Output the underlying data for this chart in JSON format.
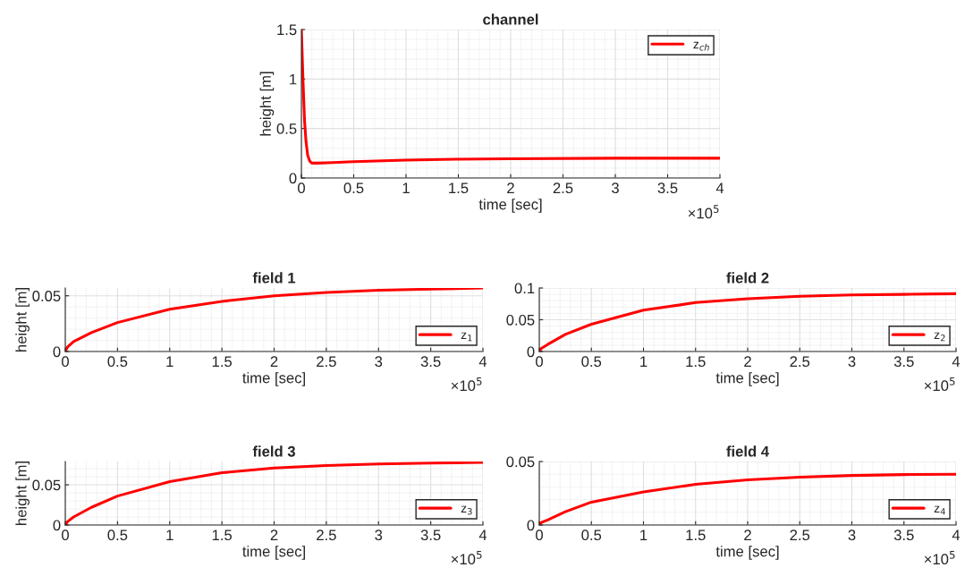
{
  "chart_data": [
    {
      "type": "line",
      "title": "channel",
      "xlabel": "time [sec]",
      "ylabel": "height [m]",
      "annotations": [
        "×10$^{5}$"
      ],
      "x": [
        0,
        0.015,
        0.03,
        0.044,
        0.06,
        0.08,
        0.1,
        0.15,
        0.3,
        0.5,
        1,
        1.5,
        2,
        3,
        4
      ],
      "series": [
        {
          "name": "z$_{ch}$",
          "color": "#ff0000",
          "values": [
            1.5,
            1.0,
            0.58,
            0.37,
            0.23,
            0.17,
            0.15,
            0.15,
            0.155,
            0.165,
            0.18,
            0.19,
            0.195,
            0.2,
            0.2
          ]
        }
      ],
      "xlim": [
        0,
        4
      ],
      "ylim": [
        0,
        1.5
      ],
      "xticks": [
        0,
        0.5,
        1,
        1.5,
        2,
        2.5,
        3,
        3.5,
        4
      ],
      "yticks": [
        0,
        0.5,
        1,
        1.5
      ],
      "grid": true,
      "legend": "top right",
      "line_style": "solid",
      "marker": "none"
    },
    {
      "type": "line",
      "title": "field 1",
      "xlabel": "time [sec]",
      "ylabel": "height [m]",
      "annotations": [
        "×10$^{5}$"
      ],
      "x": [
        0,
        0.02,
        0.08,
        0.25,
        0.5,
        1,
        1.5,
        2,
        2.5,
        3,
        3.5,
        4
      ],
      "series": [
        {
          "name": "z$_{1}$",
          "color": "#ff0000",
          "values": [
            0,
            0.004,
            0.009,
            0.017,
            0.026,
            0.038,
            0.045,
            0.05,
            0.053,
            0.055,
            0.056,
            0.057
          ]
        }
      ],
      "xlim": [
        0,
        4
      ],
      "ylim": [
        0,
        0.057
      ],
      "xticks": [
        0,
        0.5,
        1,
        1.5,
        2,
        2.5,
        3,
        3.5,
        4
      ],
      "yticks": [
        0,
        0.05
      ],
      "grid": true,
      "legend": "bottom right",
      "line_style": "solid",
      "marker": "none"
    },
    {
      "type": "line",
      "title": "field 2",
      "xlabel": "time [sec]",
      "annotations": [
        "×10$^{5}$"
      ],
      "x": [
        0,
        0.02,
        0.08,
        0.25,
        0.5,
        1,
        1.5,
        2,
        2.5,
        3,
        3.5,
        4
      ],
      "series": [
        {
          "name": "z$_{2}$",
          "color": "#ff0000",
          "values": [
            0,
            0.005,
            0.011,
            0.027,
            0.043,
            0.065,
            0.077,
            0.083,
            0.087,
            0.089,
            0.09,
            0.091
          ]
        }
      ],
      "xlim": [
        0,
        4
      ],
      "ylim": [
        0,
        0.1
      ],
      "xticks": [
        0,
        0.5,
        1,
        1.5,
        2,
        2.5,
        3,
        3.5,
        4
      ],
      "yticks": [
        0,
        0.05,
        0.1
      ],
      "grid": true,
      "legend": "bottom right",
      "line_style": "solid",
      "marker": "none"
    },
    {
      "type": "line",
      "title": "field 3",
      "xlabel": "time [sec]",
      "ylabel": "height [m]",
      "annotations": [
        "×10$^{5}$"
      ],
      "x": [
        0,
        0.02,
        0.08,
        0.25,
        0.5,
        1,
        1.5,
        2,
        2.5,
        3,
        3.5,
        4
      ],
      "series": [
        {
          "name": "z$_{3}$",
          "color": "#ff0000",
          "values": [
            0,
            0.004,
            0.01,
            0.022,
            0.036,
            0.054,
            0.065,
            0.071,
            0.074,
            0.076,
            0.077,
            0.078
          ]
        }
      ],
      "xlim": [
        0,
        4
      ],
      "ylim": [
        0,
        0.079
      ],
      "xticks": [
        0,
        0.5,
        1,
        1.5,
        2,
        2.5,
        3,
        3.5,
        4
      ],
      "yticks": [
        0,
        0.05
      ],
      "grid": true,
      "legend": "bottom right",
      "line_style": "solid",
      "marker": "none"
    },
    {
      "type": "line",
      "title": "field 4",
      "xlabel": "time [sec]",
      "annotations": [
        "×10$^{5}$"
      ],
      "x": [
        0,
        0.02,
        0.08,
        0.25,
        0.5,
        1,
        1.5,
        2,
        2.5,
        3,
        3.5,
        4
      ],
      "series": [
        {
          "name": "z$_{4}$",
          "color": "#ff0000",
          "values": [
            0,
            0.002,
            0.004,
            0.0105,
            0.018,
            0.026,
            0.032,
            0.0355,
            0.0377,
            0.039,
            0.0397,
            0.04
          ]
        }
      ],
      "xlim": [
        0,
        4
      ],
      "ylim": [
        0,
        0.05
      ],
      "xticks": [
        0,
        0.5,
        1,
        1.5,
        2,
        2.5,
        3,
        3.5,
        4
      ],
      "yticks": [
        0,
        0.05
      ],
      "grid": true,
      "legend": "bottom right",
      "line_style": "solid",
      "marker": "none"
    }
  ]
}
